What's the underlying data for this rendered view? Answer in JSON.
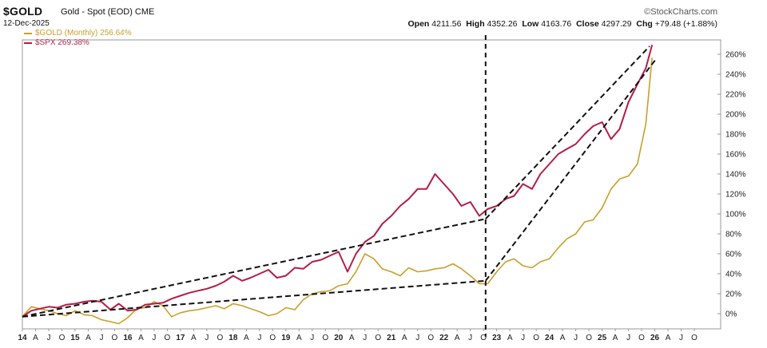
{
  "header": {
    "symbol": "$GOLD",
    "subtitle": "Gold - Spot (EOD) CME",
    "date": "12-Dec-2025",
    "brand": "©StockCharts.com",
    "open_label": "Open",
    "open": "4211.56",
    "high_label": "High",
    "high": "4352.26",
    "low_label": "Low",
    "low": "4163.76",
    "close_label": "Close",
    "close": "4297.29",
    "chg_label": "Chg",
    "chg": "+79.48 (+1.88%)"
  },
  "legend": [
    {
      "label": "$GOLD (Monthly) 256.64%",
      "color": "#c9a02b"
    },
    {
      "label": "$SPX 269.38%",
      "color": "#b41e46"
    }
  ],
  "chart_data": {
    "type": "line",
    "y_axis": {
      "side": "right",
      "unit": "%",
      "ylim": [
        -20,
        270
      ],
      "ticks": [
        0,
        20,
        40,
        60,
        80,
        100,
        120,
        140,
        160,
        180,
        200,
        220,
        240,
        260
      ],
      "tick_labels": [
        "0%",
        "20%",
        "40%",
        "60%",
        "80%",
        "100%",
        "120%",
        "140%",
        "160%",
        "180%",
        "200%",
        "220%",
        "240%",
        "260%"
      ]
    },
    "x_axis": {
      "start": 2014.0,
      "end": 2027.25,
      "labels": [
        "14",
        "A",
        "J",
        "O",
        "15",
        "A",
        "J",
        "O",
        "16",
        "A",
        "J",
        "O",
        "17",
        "A",
        "J",
        "O",
        "18",
        "A",
        "J",
        "O",
        "19",
        "A",
        "J",
        "O",
        "20",
        "A",
        "J",
        "O",
        "21",
        "A",
        "J",
        "O",
        "22",
        "A",
        "J",
        "O",
        "23",
        "A",
        "J",
        "O",
        "24",
        "A",
        "J",
        "O",
        "25",
        "A",
        "J",
        "O",
        "26",
        "A",
        "J",
        "O"
      ],
      "year_labels": [
        "14",
        "15",
        "16",
        "17",
        "18",
        "19",
        "20",
        "21",
        "22",
        "23",
        "24",
        "25",
        "26"
      ]
    },
    "series": [
      {
        "name": "$GOLD (Monthly)",
        "color": "#c9a02b",
        "points": [
          [
            2014.0,
            -3
          ],
          [
            2014.17,
            7
          ],
          [
            2014.33,
            5
          ],
          [
            2014.5,
            3
          ],
          [
            2014.67,
            0
          ],
          [
            2014.83,
            -2
          ],
          [
            2015.0,
            3
          ],
          [
            2015.17,
            -1
          ],
          [
            2015.33,
            -2
          ],
          [
            2015.5,
            -6
          ],
          [
            2015.67,
            -8
          ],
          [
            2015.83,
            -10
          ],
          [
            2016.0,
            -4
          ],
          [
            2016.17,
            5
          ],
          [
            2016.33,
            6
          ],
          [
            2016.5,
            12
          ],
          [
            2016.67,
            8
          ],
          [
            2016.83,
            -3
          ],
          [
            2017.0,
            1
          ],
          [
            2017.17,
            3
          ],
          [
            2017.33,
            4
          ],
          [
            2017.5,
            6
          ],
          [
            2017.67,
            8
          ],
          [
            2017.83,
            5
          ],
          [
            2018.0,
            10
          ],
          [
            2018.17,
            8
          ],
          [
            2018.33,
            5
          ],
          [
            2018.5,
            2
          ],
          [
            2018.67,
            -2
          ],
          [
            2018.83,
            0
          ],
          [
            2019.0,
            6
          ],
          [
            2019.17,
            4
          ],
          [
            2019.33,
            14
          ],
          [
            2019.5,
            20
          ],
          [
            2019.67,
            22
          ],
          [
            2019.83,
            23
          ],
          [
            2020.0,
            28
          ],
          [
            2020.17,
            30
          ],
          [
            2020.33,
            42
          ],
          [
            2020.5,
            60
          ],
          [
            2020.67,
            55
          ],
          [
            2020.83,
            45
          ],
          [
            2021.0,
            42
          ],
          [
            2021.17,
            38
          ],
          [
            2021.33,
            46
          ],
          [
            2021.5,
            42
          ],
          [
            2021.67,
            43
          ],
          [
            2021.83,
            45
          ],
          [
            2022.0,
            46
          ],
          [
            2022.17,
            50
          ],
          [
            2022.33,
            45
          ],
          [
            2022.5,
            38
          ],
          [
            2022.67,
            30
          ],
          [
            2022.83,
            30
          ],
          [
            2023.0,
            42
          ],
          [
            2023.17,
            52
          ],
          [
            2023.33,
            55
          ],
          [
            2023.5,
            48
          ],
          [
            2023.67,
            46
          ],
          [
            2023.83,
            52
          ],
          [
            2024.0,
            55
          ],
          [
            2024.17,
            66
          ],
          [
            2024.33,
            75
          ],
          [
            2024.5,
            80
          ],
          [
            2024.67,
            92
          ],
          [
            2024.83,
            94
          ],
          [
            2025.0,
            106
          ],
          [
            2025.17,
            125
          ],
          [
            2025.33,
            135
          ],
          [
            2025.5,
            138
          ],
          [
            2025.67,
            150
          ],
          [
            2025.83,
            190
          ],
          [
            2025.95,
            256.64
          ]
        ]
      },
      {
        "name": "$SPX",
        "color": "#b41e46",
        "points": [
          [
            2014.0,
            -3
          ],
          [
            2014.17,
            3
          ],
          [
            2014.33,
            5
          ],
          [
            2014.5,
            7
          ],
          [
            2014.67,
            6
          ],
          [
            2014.83,
            9
          ],
          [
            2015.0,
            10
          ],
          [
            2015.17,
            12
          ],
          [
            2015.33,
            13
          ],
          [
            2015.5,
            12
          ],
          [
            2015.67,
            4
          ],
          [
            2015.83,
            10
          ],
          [
            2016.0,
            3
          ],
          [
            2016.17,
            4
          ],
          [
            2016.33,
            9
          ],
          [
            2016.5,
            10
          ],
          [
            2016.67,
            11
          ],
          [
            2016.83,
            15
          ],
          [
            2017.0,
            18
          ],
          [
            2017.17,
            21
          ],
          [
            2017.33,
            23
          ],
          [
            2017.5,
            25
          ],
          [
            2017.67,
            28
          ],
          [
            2017.83,
            32
          ],
          [
            2018.0,
            38
          ],
          [
            2018.17,
            33
          ],
          [
            2018.33,
            36
          ],
          [
            2018.5,
            40
          ],
          [
            2018.67,
            44
          ],
          [
            2018.83,
            36
          ],
          [
            2019.0,
            38
          ],
          [
            2019.17,
            46
          ],
          [
            2019.33,
            45
          ],
          [
            2019.5,
            52
          ],
          [
            2019.67,
            54
          ],
          [
            2019.83,
            58
          ],
          [
            2020.0,
            62
          ],
          [
            2020.17,
            42
          ],
          [
            2020.33,
            60
          ],
          [
            2020.5,
            72
          ],
          [
            2020.67,
            78
          ],
          [
            2020.83,
            90
          ],
          [
            2021.0,
            98
          ],
          [
            2021.17,
            108
          ],
          [
            2021.33,
            115
          ],
          [
            2021.5,
            125
          ],
          [
            2021.67,
            125
          ],
          [
            2021.83,
            140
          ],
          [
            2022.0,
            130
          ],
          [
            2022.17,
            120
          ],
          [
            2022.33,
            108
          ],
          [
            2022.5,
            112
          ],
          [
            2022.67,
            98
          ],
          [
            2022.83,
            105
          ],
          [
            2023.0,
            108
          ],
          [
            2023.17,
            115
          ],
          [
            2023.33,
            118
          ],
          [
            2023.5,
            130
          ],
          [
            2023.67,
            125
          ],
          [
            2023.83,
            140
          ],
          [
            2024.0,
            150
          ],
          [
            2024.17,
            160
          ],
          [
            2024.33,
            165
          ],
          [
            2024.5,
            170
          ],
          [
            2024.67,
            180
          ],
          [
            2024.83,
            188
          ],
          [
            2025.0,
            192
          ],
          [
            2025.17,
            175
          ],
          [
            2025.33,
            185
          ],
          [
            2025.5,
            212
          ],
          [
            2025.67,
            230
          ],
          [
            2025.83,
            246
          ],
          [
            2025.95,
            269.38
          ]
        ]
      }
    ],
    "annotations": {
      "vertical_line_x": 2022.79,
      "trendlines": [
        [
          [
            2014.0,
            -3
          ],
          [
            2022.79,
            95
          ]
        ],
        [
          [
            2014.0,
            -3
          ],
          [
            2022.79,
            33
          ]
        ],
        [
          [
            2022.79,
            95
          ],
          [
            2025.9,
            268
          ]
        ],
        [
          [
            2022.79,
            33
          ],
          [
            2026.02,
            255
          ]
        ]
      ]
    }
  }
}
